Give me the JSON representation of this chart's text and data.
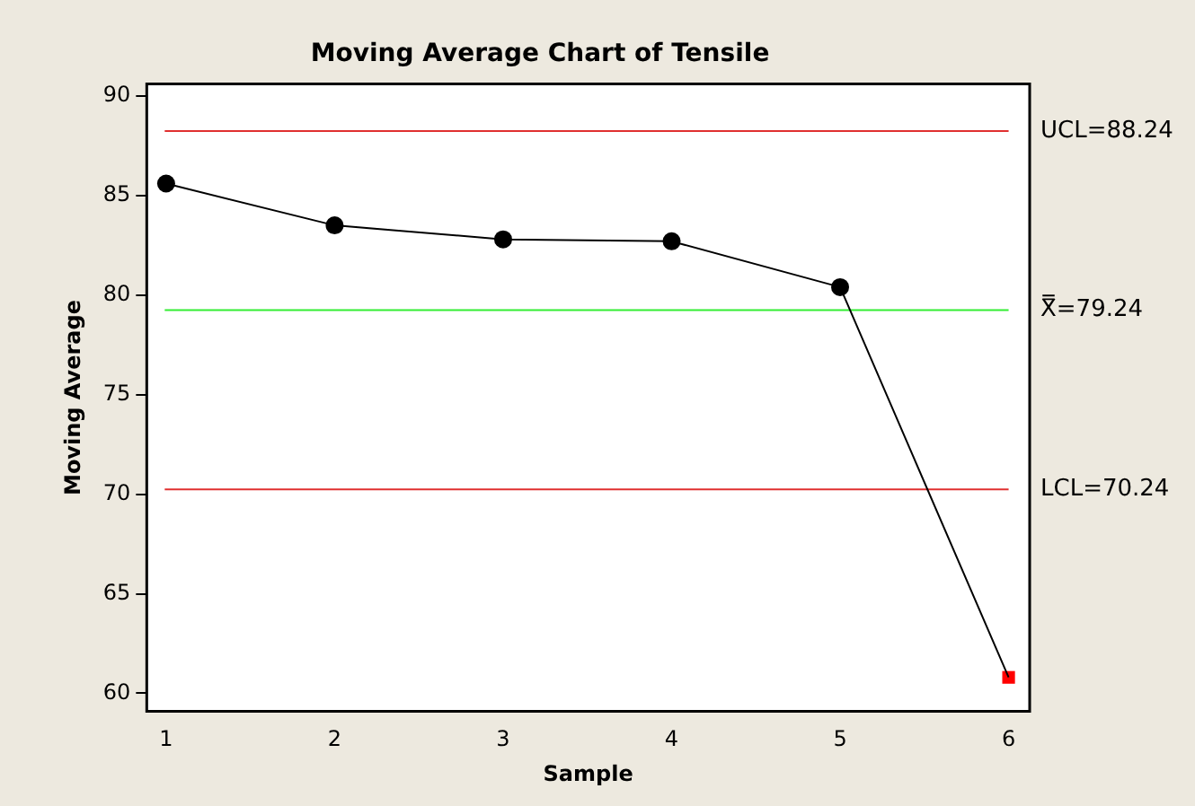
{
  "chart_data": {
    "type": "line",
    "title": "Moving Average Chart of Tensile",
    "xlabel": "Sample",
    "ylabel": "Moving Average",
    "x": [
      1,
      2,
      3,
      4,
      5,
      6
    ],
    "series": [
      {
        "type": "line",
        "color": "#000000",
        "marker": "none",
        "values": [
          85.6,
          83.5,
          82.8,
          82.7,
          80.4,
          60.8
        ]
      },
      {
        "type": "scatter",
        "color": "#000000",
        "marker": "circle",
        "x": [
          1,
          2,
          3,
          4,
          5
        ],
        "values": [
          85.6,
          83.5,
          82.8,
          82.7,
          80.4
        ]
      },
      {
        "type": "scatter",
        "color": "#ff0000",
        "marker": "square",
        "x": [
          6
        ],
        "values": [
          60.8
        ]
      }
    ],
    "xlim": [
      0.885,
      6.125
    ],
    "xticks": [
      1,
      2,
      3,
      4,
      5,
      6
    ],
    "ylim": [
      59.1,
      90.6
    ],
    "yticks": [
      60,
      65,
      70,
      75,
      80,
      85,
      90
    ],
    "ref_lines": [
      {
        "axis": "y",
        "value": 88.24,
        "label": "UCL=88.24",
        "color": "#e03030"
      },
      {
        "axis": "y",
        "value": 79.24,
        "label": "X̿=79.24",
        "color": "#33ee33"
      },
      {
        "axis": "y",
        "value": 70.24,
        "label": "LCL=70.24",
        "color": "#e03030"
      }
    ],
    "grid": false,
    "legend": false
  }
}
